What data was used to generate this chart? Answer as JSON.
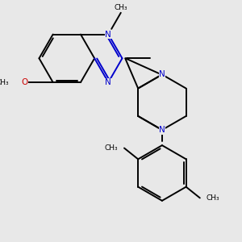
{
  "bg_color": "#e8e8e8",
  "bond_color": "#000000",
  "n_color": "#0000cc",
  "o_color": "#cc0000",
  "line_width": 1.4,
  "font_size": 7.5,
  "fig_size": [
    3.0,
    3.0
  ],
  "dpi": 100,
  "xlim": [
    -1.0,
    5.5
  ],
  "ylim": [
    -4.5,
    2.2
  ]
}
